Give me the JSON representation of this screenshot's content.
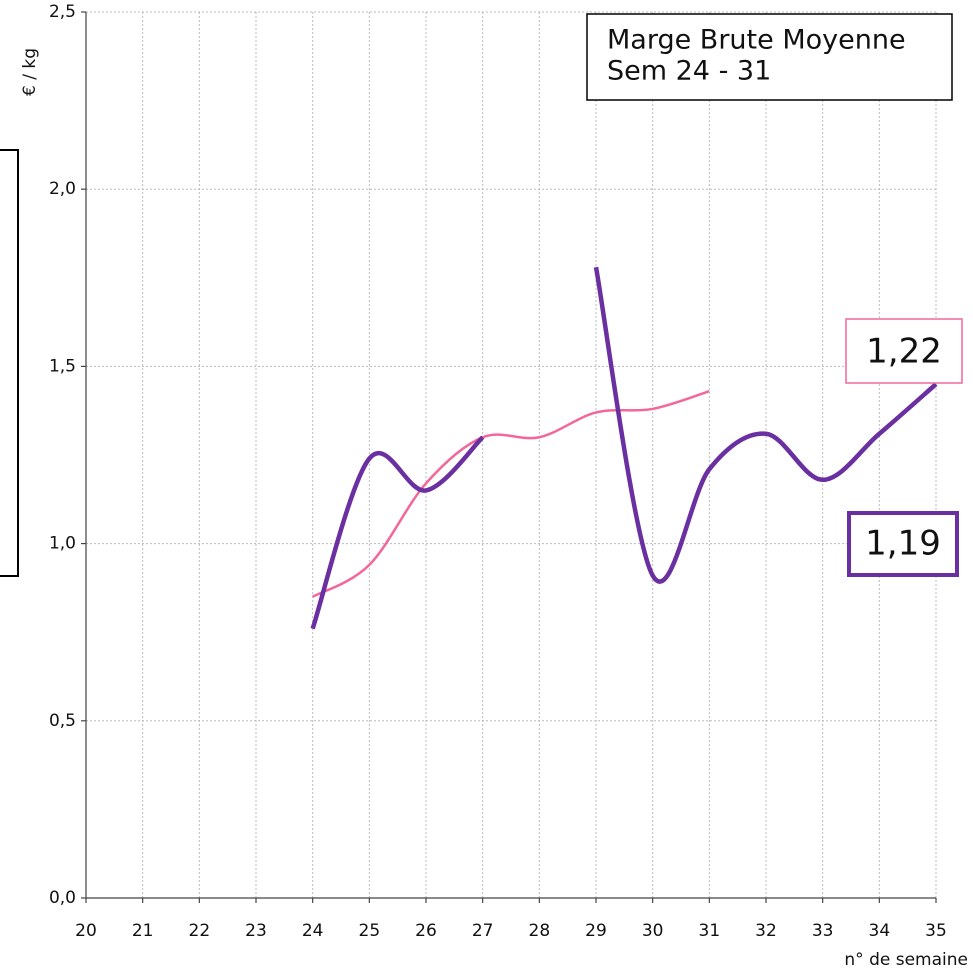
{
  "chart_data": {
    "type": "line",
    "ylabel": "€ / kg",
    "xlabel": "n° de semaine",
    "x": [
      24,
      25,
      26,
      27,
      28,
      29,
      30,
      31,
      32,
      33,
      34,
      35
    ],
    "series": [
      {
        "color": "#f4679a",
        "values": [
          0.85,
          0.94,
          1.17,
          1.3,
          1.3,
          1.37,
          1.38,
          1.43,
          null,
          null,
          null,
          null
        ]
      },
      {
        "color": "#6a2fa0",
        "values": [
          0.76,
          1.24,
          1.15,
          1.3,
          null,
          1.78,
          0.91,
          1.21,
          1.31,
          1.18,
          1.31,
          1.45
        ]
      }
    ],
    "xlim": [
      20,
      35
    ],
    "xticks": [
      20,
      21,
      22,
      23,
      24,
      25,
      26,
      27,
      28,
      29,
      30,
      31,
      32,
      33,
      34,
      35
    ],
    "ylim": [
      0,
      2.5
    ],
    "yticks": [
      {
        "value": 0,
        "label": "0,0"
      },
      {
        "value": 0.5,
        "label": "0,5"
      },
      {
        "value": 1,
        "label": "1,0"
      },
      {
        "value": 1.5,
        "label": "1,5"
      },
      {
        "value": 2,
        "label": "2,0"
      },
      {
        "value": 2.5,
        "label": "2,5"
      }
    ],
    "grid": true,
    "annotations": [
      "Marge Brute Moyenne",
      "Sem 24 - 31",
      "1,22",
      "1,19"
    ]
  }
}
